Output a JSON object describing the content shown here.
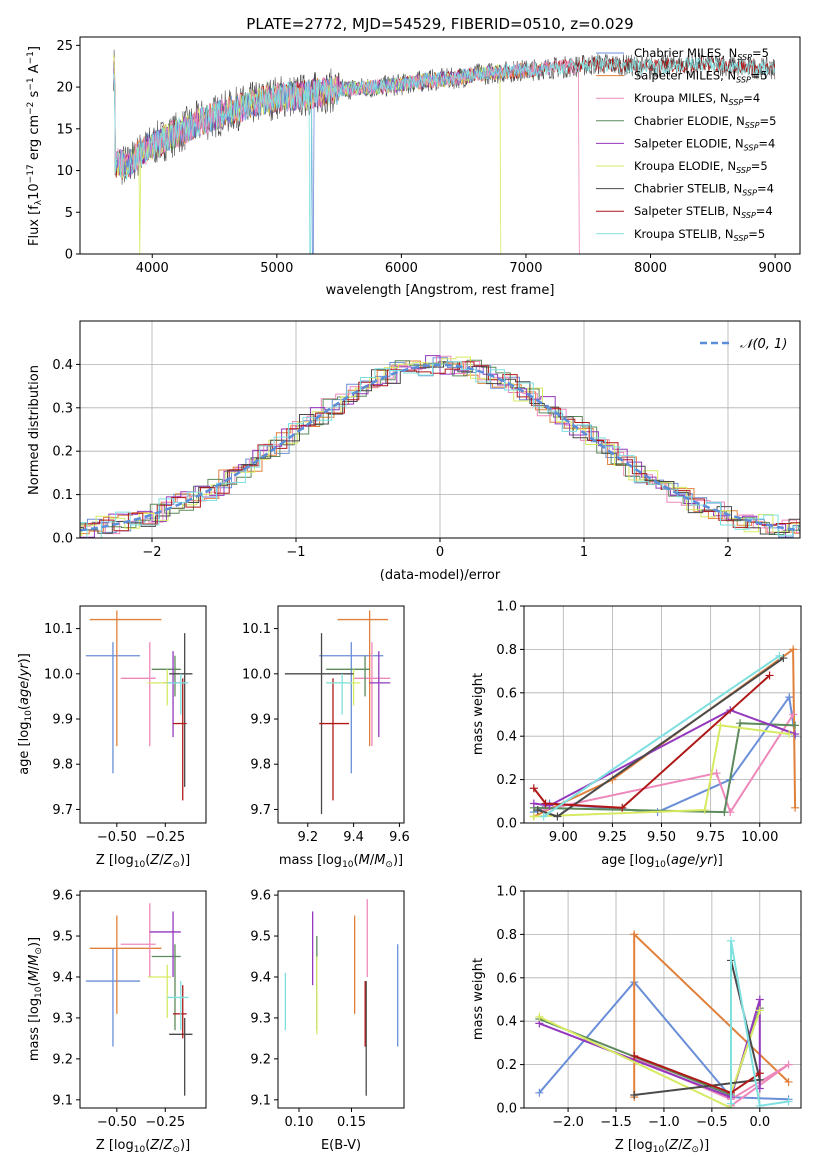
{
  "page_title": "PLATE=2772, MJD=54529, FIBERID=0510, z=0.029",
  "colors": {
    "c0": "#6a8fd8",
    "c1": "#e0803a",
    "c2": "#ee88bb",
    "c3": "#5c8a5c",
    "c4": "#9438bd",
    "c5": "#d7ea62",
    "c6": "#4a4a4a",
    "c7": "#b01818",
    "c8": "#7fe0e0"
  },
  "chart_data": [
    {
      "id": "spectrum",
      "type": "line",
      "title": "PLATE=2772, MJD=54529, FIBERID=0510, z=0.029",
      "xlabel": "wavelength [Angstrom, rest frame]",
      "ylabel": "Flux [f_λ 10^-17 erg cm^-2 s^-1 A^-1]",
      "xlim": [
        3420,
        9200
      ],
      "ylim": [
        0,
        26
      ],
      "xticks": [
        4000,
        5000,
        6000,
        7000,
        8000,
        9000
      ],
      "yticks": [
        0,
        5,
        10,
        15,
        20,
        25
      ],
      "legend_position": "top-right",
      "continuum": [
        [
          3700,
          11
        ],
        [
          3800,
          10.5
        ],
        [
          3900,
          12
        ],
        [
          4000,
          13
        ],
        [
          4200,
          14.5
        ],
        [
          4400,
          16
        ],
        [
          4600,
          17
        ],
        [
          4800,
          18
        ],
        [
          5000,
          18.8
        ],
        [
          5200,
          19
        ],
        [
          5400,
          19.5
        ],
        [
          5600,
          19.8
        ],
        [
          5800,
          20
        ],
        [
          6000,
          20.3
        ],
        [
          6200,
          20.8
        ],
        [
          6400,
          21
        ],
        [
          6600,
          21.5
        ],
        [
          6800,
          21.8
        ],
        [
          7000,
          22
        ],
        [
          7200,
          22.3
        ],
        [
          7400,
          22.5
        ],
        [
          7600,
          22.8
        ],
        [
          7800,
          22.6
        ],
        [
          8000,
          22.4
        ],
        [
          8200,
          22.6
        ],
        [
          8400,
          22.8
        ],
        [
          8600,
          22.6
        ],
        [
          8800,
          22.3
        ],
        [
          9000,
          22.2
        ]
      ],
      "series": [
        {
          "name": "Chabrier MILES, N_SSP=5",
          "x_end": 7200,
          "drops": [
            5290
          ]
        },
        {
          "name": "Salpeter MILES, N_SSP=5",
          "x_end": 7200,
          "drops": []
        },
        {
          "name": "Kroupa MILES, N_SSP=4",
          "x_end": 7430,
          "drops": [
            7430
          ]
        },
        {
          "name": "Chabrier ELODIE, N_SSP=5",
          "x_end": 6800,
          "drops": []
        },
        {
          "name": "Salpeter ELODIE, N_SSP=4",
          "x_end": 6800,
          "drops": []
        },
        {
          "name": "Kroupa ELODIE, N_SSP=5",
          "x_end": 6800,
          "drops": [
            3900,
            6800
          ]
        },
        {
          "name": "Chabrier STELIB, N_SSP=4",
          "x_end": 9000,
          "drops": []
        },
        {
          "name": "Salpeter STELIB, N_SSP=4",
          "x_end": 9000,
          "drops": []
        },
        {
          "name": "Kroupa STELIB, N_SSP=5",
          "x_end": 9000,
          "drops": [
            5270
          ]
        }
      ]
    },
    {
      "id": "residuals",
      "type": "bar",
      "xlabel": "(data-model)/error",
      "ylabel": "Normed distribution",
      "xlim": [
        -2.5,
        2.5
      ],
      "ylim": [
        0,
        0.5
      ],
      "xticks": [
        -2,
        -1,
        0,
        1,
        2
      ],
      "yticks": [
        0.0,
        0.1,
        0.2,
        0.3,
        0.4
      ],
      "legend_label": "𝒩(0, 1)",
      "legend_position": "top-right",
      "grid": true,
      "bin_width": 0.1,
      "n_histograms": 9
    },
    {
      "id": "age-vs-Z",
      "type": "scatter",
      "xlabel": "Z [log10(Z/Z⊙)]",
      "ylabel": "age  [log10(age/yr)]",
      "xlim": [
        -0.69,
        -0.04
      ],
      "ylim": [
        9.67,
        10.15
      ],
      "xticks": [
        -0.5,
        -0.25
      ],
      "yticks": [
        9.7,
        9.8,
        9.9,
        10.0,
        10.1
      ],
      "points": [
        {
          "x": -0.52,
          "y": 10.04,
          "xerr": [
            0.14,
            0.14
          ],
          "yerr": [
            0.26,
            0.03
          ]
        },
        {
          "x": -0.5,
          "y": 10.12,
          "xerr": [
            0.14,
            0.23
          ],
          "yerr": [
            0.28,
            0.02
          ]
        },
        {
          "x": -0.33,
          "y": 9.99,
          "xerr": [
            0.15,
            0.03
          ],
          "yerr": [
            0.15,
            0.08
          ]
        },
        {
          "x": -0.2,
          "y": 10.01,
          "xerr": [
            0.12,
            0.03
          ],
          "yerr": [
            0.06,
            0.03
          ]
        },
        {
          "x": -0.21,
          "y": 9.98,
          "xerr": [
            0.05,
            0.04
          ],
          "yerr": [
            0.12,
            0.07
          ]
        },
        {
          "x": -0.24,
          "y": 9.98,
          "xerr": [
            0.1,
            0.02
          ],
          "yerr": [
            0.05,
            0.03
          ]
        },
        {
          "x": -0.15,
          "y": 10.0,
          "xerr": [
            0.08,
            0.04
          ],
          "yerr": [
            0.25,
            0.09
          ]
        },
        {
          "x": -0.16,
          "y": 9.89,
          "xerr": [
            0.05,
            0.02
          ],
          "yerr": [
            0.17,
            0.1
          ]
        },
        {
          "x": -0.17,
          "y": 9.98,
          "xerr": [
            0.07,
            0.04
          ],
          "yerr": [
            0.07,
            0.02
          ]
        }
      ]
    },
    {
      "id": "age-vs-mass",
      "type": "scatter",
      "xlabel": "mass [log10(M/M⊙)]",
      "xlim": [
        9.07,
        9.62
      ],
      "ylim": [
        9.67,
        10.15
      ],
      "xticks": [
        9.2,
        9.4,
        9.6
      ],
      "yticks": [
        9.7,
        9.8,
        9.9,
        10.0,
        10.1
      ],
      "points": [
        {
          "x": 9.39,
          "y": 10.04,
          "xerr": [
            0.14,
            0.14
          ],
          "yerr": [
            0.26,
            0.03
          ]
        },
        {
          "x": 9.47,
          "y": 10.12,
          "xerr": [
            0.14,
            0.08
          ],
          "yerr": [
            0.28,
            0.02
          ]
        },
        {
          "x": 9.48,
          "y": 9.99,
          "xerr": [
            0.08,
            0.08
          ],
          "yerr": [
            0.15,
            0.08
          ]
        },
        {
          "x": 9.45,
          "y": 10.01,
          "xerr": [
            0.17,
            0.02
          ],
          "yerr": [
            0.06,
            0.03
          ]
        },
        {
          "x": 9.51,
          "y": 9.98,
          "xerr": [
            0.04,
            0.05
          ],
          "yerr": [
            0.12,
            0.07
          ]
        },
        {
          "x": 9.4,
          "y": 9.98,
          "xerr": [
            0.12,
            0.03
          ],
          "yerr": [
            0.05,
            0.03
          ]
        },
        {
          "x": 9.26,
          "y": 10.0,
          "xerr": [
            0.16,
            0.14
          ],
          "yerr": [
            0.31,
            0.09
          ]
        },
        {
          "x": 9.31,
          "y": 9.89,
          "xerr": [
            0.06,
            0.07
          ],
          "yerr": [
            0.17,
            0.1
          ]
        },
        {
          "x": 9.35,
          "y": 9.98,
          "xerr": [
            0.07,
            0.04
          ],
          "yerr": [
            0.07,
            0.02
          ]
        }
      ]
    },
    {
      "id": "weight-vs-age",
      "type": "line",
      "xlabel": "age  [log10(age/yr)]",
      "ylabel": "mass weight",
      "xlim": [
        8.8,
        10.21
      ],
      "ylim": [
        0,
        1
      ],
      "xticks": [
        9.0,
        9.25,
        9.5,
        9.75,
        10.0
      ],
      "xticklabels": [
        "9.00",
        "9.25",
        "9.50",
        "9.75",
        "10.00"
      ],
      "yticks": [
        0.0,
        0.2,
        0.4,
        0.6,
        0.8,
        1.0
      ],
      "grid": true,
      "series": [
        {
          "x": [
            8.85,
            8.93,
            9.48,
            9.85,
            10.15,
            10.18
          ],
          "y": [
            0.05,
            0.09,
            0.05,
            0.2,
            0.58,
            0.4
          ]
        },
        {
          "x": [
            8.85,
            9.25,
            10.17,
            10.18
          ],
          "y": [
            0.03,
            0.2,
            0.8,
            0.07
          ]
        },
        {
          "x": [
            8.9,
            9.78,
            9.85,
            10.17
          ],
          "y": [
            0.06,
            0.23,
            0.05,
            0.5
          ]
        },
        {
          "x": [
            8.85,
            9.82,
            9.9,
            10.18
          ],
          "y": [
            0.07,
            0.05,
            0.46,
            0.45
          ]
        },
        {
          "x": [
            8.85,
            8.93,
            9.85,
            10.18
          ],
          "y": [
            0.09,
            0.08,
            0.52,
            0.41
          ]
        },
        {
          "x": [
            8.85,
            9.72,
            9.8,
            10.15
          ],
          "y": [
            0.03,
            0.06,
            0.45,
            0.41
          ]
        },
        {
          "x": [
            8.87,
            8.97,
            10.12
          ],
          "y": [
            0.06,
            0.03,
            0.76
          ]
        },
        {
          "x": [
            8.85,
            8.91,
            9.3,
            10.05
          ],
          "y": [
            0.16,
            0.09,
            0.07,
            0.68
          ]
        },
        {
          "x": [
            8.9,
            10.1
          ],
          "y": [
            0.03,
            0.77
          ]
        }
      ]
    },
    {
      "id": "mass-vs-Z",
      "type": "scatter",
      "xlabel": "Z [log10(Z/Z⊙)]",
      "ylabel": "mass [log10(M/M⊙)]",
      "xlim": [
        -0.69,
        -0.04
      ],
      "ylim": [
        9.08,
        9.61
      ],
      "xticks": [
        -0.5,
        -0.25
      ],
      "yticks": [
        9.1,
        9.2,
        9.3,
        9.4,
        9.5,
        9.6
      ],
      "points": [
        {
          "x": -0.52,
          "y": 9.39,
          "xerr": [
            0.14,
            0.14
          ],
          "yerr": [
            0.16,
            0.08
          ]
        },
        {
          "x": -0.5,
          "y": 9.47,
          "xerr": [
            0.14,
            0.23
          ],
          "yerr": [
            0.16,
            0.08
          ]
        },
        {
          "x": -0.33,
          "y": 9.48,
          "xerr": [
            0.15,
            0.03
          ],
          "yerr": [
            0.08,
            0.1
          ]
        },
        {
          "x": -0.2,
          "y": 9.45,
          "xerr": [
            0.12,
            0.03
          ],
          "yerr": [
            0.18,
            0.03
          ]
        },
        {
          "x": -0.21,
          "y": 9.51,
          "xerr": [
            0.12,
            0.04
          ],
          "yerr": [
            0.11,
            0.05
          ]
        },
        {
          "x": -0.24,
          "y": 9.4,
          "xerr": [
            0.1,
            0.02
          ],
          "yerr": [
            0.1,
            0.03
          ]
        },
        {
          "x": -0.15,
          "y": 9.26,
          "xerr": [
            0.08,
            0.04
          ],
          "yerr": [
            0.15,
            0.04
          ]
        },
        {
          "x": -0.16,
          "y": 9.31,
          "xerr": [
            0.05,
            0.02
          ],
          "yerr": [
            0.06,
            0.07
          ]
        },
        {
          "x": -0.17,
          "y": 9.35,
          "xerr": [
            0.07,
            0.04
          ],
          "yerr": [
            0.08,
            0.04
          ]
        }
      ]
    },
    {
      "id": "mass-vs-ebv",
      "type": "scatter",
      "xlabel": "E(B-V)",
      "xlim": [
        0.08,
        0.2
      ],
      "ylim": [
        9.08,
        9.61
      ],
      "xticks": [
        0.1,
        0.15
      ],
      "yticks": [
        9.1,
        9.2,
        9.3,
        9.4,
        9.5,
        9.6
      ],
      "points": [
        {
          "x": 0.194,
          "y": 9.39,
          "xerr": [
            0,
            0
          ],
          "yerr": [
            0.16,
            0.09
          ]
        },
        {
          "x": 0.153,
          "y": 9.47,
          "xerr": [
            0,
            0
          ],
          "yerr": [
            0.16,
            0.08
          ]
        },
        {
          "x": 0.165,
          "y": 9.48,
          "xerr": [
            0,
            0
          ],
          "yerr": [
            0.08,
            0.11
          ]
        },
        {
          "x": 0.117,
          "y": 9.45,
          "xerr": [
            0,
            0
          ],
          "yerr": [
            0.18,
            0.05
          ]
        },
        {
          "x": 0.113,
          "y": 9.51,
          "xerr": [
            0,
            0
          ],
          "yerr": [
            0.13,
            0.05
          ]
        },
        {
          "x": 0.117,
          "y": 9.4,
          "xerr": [
            0,
            0
          ],
          "yerr": [
            0.14,
            0.05
          ]
        },
        {
          "x": 0.164,
          "y": 9.26,
          "xerr": [
            0,
            0
          ],
          "yerr": [
            0.15,
            0.13
          ]
        },
        {
          "x": 0.163,
          "y": 9.31,
          "xerr": [
            0,
            0
          ],
          "yerr": [
            0.08,
            0.08
          ]
        },
        {
          "x": 0.087,
          "y": 9.35,
          "xerr": [
            0,
            0
          ],
          "yerr": [
            0.08,
            0.06
          ]
        }
      ]
    },
    {
      "id": "weight-vs-Z",
      "type": "line",
      "xlabel": "Z [log10(Z/Z⊙)]",
      "ylabel": "mass weight",
      "xlim": [
        -2.46,
        0.43
      ],
      "ylim": [
        0,
        1
      ],
      "xticks": [
        -2.0,
        -1.5,
        -1.0,
        -0.5,
        0.0
      ],
      "xticklabels": [
        "−2.0",
        "−1.5",
        "−1.0",
        "−0.5",
        "0.0"
      ],
      "yticks": [
        0.0,
        0.2,
        0.4,
        0.6,
        0.8,
        1.0
      ],
      "grid": true,
      "series": [
        {
          "x": [
            -2.3,
            -1.31,
            -0.3,
            0.3
          ],
          "y": [
            0.07,
            0.58,
            0.05,
            0.04
          ]
        },
        {
          "x": [
            -1.31,
            -1.31,
            0.3
          ],
          "y": [
            0.05,
            0.8,
            0.12
          ]
        },
        {
          "x": [
            -1.31,
            -0.3,
            0.3,
            -0.3
          ],
          "y": [
            0.23,
            0.04,
            0.2,
            0.01
          ]
        },
        {
          "x": [
            -2.3,
            -0.3,
            0.0
          ],
          "y": [
            0.41,
            0.06,
            0.46
          ]
        },
        {
          "x": [
            -2.3,
            -0.3,
            0.0,
            0.0
          ],
          "y": [
            0.39,
            0.05,
            0.5,
            0.09
          ]
        },
        {
          "x": [
            -2.3,
            -0.3,
            -0.3,
            0.0
          ],
          "y": [
            0.42,
            0.0,
            0.07,
            0.45
          ]
        },
        {
          "x": [
            -1.31,
            0.0,
            -0.3
          ],
          "y": [
            0.06,
            0.13,
            0.68
          ]
        },
        {
          "x": [
            -1.31,
            -0.3,
            0.0
          ],
          "y": [
            0.24,
            0.07,
            0.16
          ]
        },
        {
          "x": [
            -0.3,
            -0.3,
            0.0,
            0.3
          ],
          "y": [
            0.02,
            0.77,
            0.01,
            0.03
          ]
        }
      ]
    }
  ]
}
